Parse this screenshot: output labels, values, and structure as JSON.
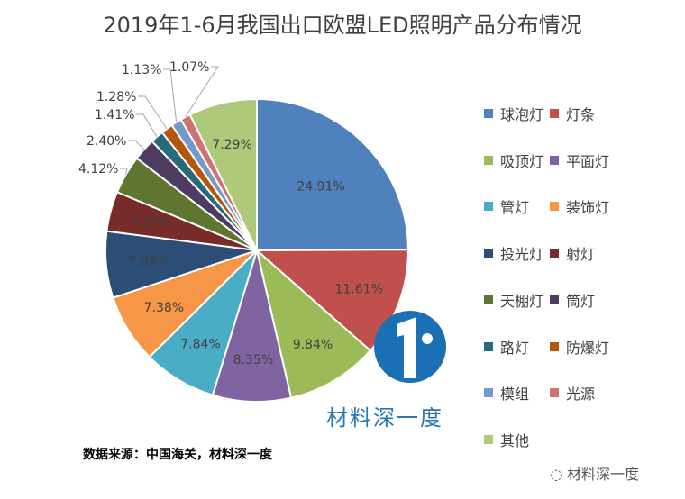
{
  "chart_data": {
    "type": "pie",
    "title": "2019年1-6月我国出口欧盟LED照明产品分布情况",
    "categories": [
      "球泡灯",
      "灯条",
      "吸顶灯",
      "平面灯",
      "管灯",
      "装饰灯",
      "投光灯",
      "射灯",
      "天棚灯",
      "筒灯",
      "路灯",
      "防爆灯",
      "模组",
      "光源",
      "其他"
    ],
    "values": [
      24.91,
      11.61,
      9.84,
      8.35,
      7.84,
      7.38,
      7.09,
      4.27,
      4.12,
      2.4,
      1.41,
      1.28,
      1.13,
      1.07,
      7.29
    ],
    "labels": [
      "24.91%",
      "11.61%",
      "9.84%",
      "8.35%",
      "7.84%",
      "7.38%",
      "7.09%",
      "4.27%",
      "4.12%",
      "2.40%",
      "1.41%",
      "1.28%",
      "1.13%",
      "1.07%",
      "7.29%"
    ],
    "colors": [
      "#4F81BD",
      "#C0504D",
      "#9BBB59",
      "#8064A2",
      "#4BACC6",
      "#F79646",
      "#2C4D75",
      "#772C2A",
      "#5F7530",
      "#4D3B62",
      "#276A7C",
      "#B65708",
      "#729ACA",
      "#CD7371",
      "#AFC97A"
    ],
    "legend_position": "right"
  },
  "source": "数据来源：中国海关，材料深一度",
  "logo_text": "材料深一度",
  "watermark": "材料深一度"
}
